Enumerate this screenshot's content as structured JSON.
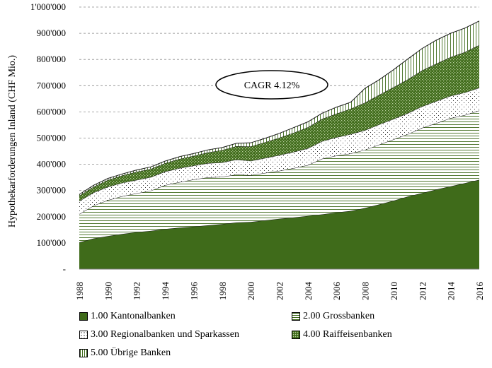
{
  "chart_data": {
    "type": "area",
    "stacked": true,
    "title": "",
    "xlabel": "",
    "ylabel": "Hypothekarforderungen Inland (CHF Mio.)",
    "ylim": [
      0,
      1000000
    ],
    "yticks": [
      0,
      100000,
      200000,
      300000,
      400000,
      500000,
      600000,
      700000,
      800000,
      900000,
      1000000
    ],
    "ytick_labels": [
      "-",
      "100'000",
      "200'000",
      "300'000",
      "400'000",
      "500'000",
      "600'000",
      "700'000",
      "800'000",
      "900'000",
      "1'000'000"
    ],
    "x": [
      1988,
      1989,
      1990,
      1991,
      1992,
      1993,
      1994,
      1995,
      1996,
      1997,
      1998,
      1999,
      2000,
      2001,
      2002,
      2003,
      2004,
      2005,
      2006,
      2007,
      2008,
      2009,
      2010,
      2011,
      2012,
      2013,
      2014,
      2015,
      2016
    ],
    "xticks": [
      "1988",
      "1990",
      "1992",
      "1994",
      "1996",
      "1998",
      "2000",
      "2002",
      "2004",
      "2006",
      "2008",
      "2010",
      "2012",
      "2014",
      "2016"
    ],
    "grid": "horizontal-dashed",
    "annotation": "CAGR 4.12%",
    "legend_position": "bottom",
    "series": [
      {
        "name": "1.00 Kantonalbanken",
        "color": "#3f6b1a",
        "pattern": "solid",
        "values": [
          102000,
          117000,
          126000,
          134000,
          141000,
          146000,
          153000,
          158000,
          162000,
          167000,
          172000,
          178000,
          180000,
          186000,
          192000,
          197000,
          203000,
          209000,
          216000,
          222000,
          233000,
          247000,
          261000,
          277000,
          290000,
          304000,
          316000,
          328000,
          341000
        ]
      },
      {
        "name": "2.00 Grossbanken",
        "color": "#3f6b1a",
        "pattern": "horizontal-lines",
        "values": [
          108000,
          125000,
          137000,
          144000,
          148000,
          153000,
          167000,
          174000,
          180000,
          183000,
          180000,
          183000,
          178000,
          181000,
          183000,
          188000,
          194000,
          212000,
          217000,
          219000,
          222000,
          228000,
          234000,
          238000,
          249000,
          253000,
          260000,
          260000,
          264000
        ]
      },
      {
        "name": "3.00 Regionalbanken und Sparkassen",
        "color": "#3f6b1a",
        "pattern": "dots",
        "values": [
          50000,
          50000,
          51000,
          51000,
          51000,
          52000,
          52000,
          53000,
          53000,
          54000,
          55000,
          57000,
          55000,
          57000,
          60000,
          62000,
          64000,
          67000,
          70000,
          74000,
          75000,
          77000,
          78000,
          80000,
          82000,
          84000,
          85000,
          86000,
          87000
        ]
      },
      {
        "name": "4.00 Raiffeisenbanken",
        "color": "#3f6b1a",
        "pattern": "checker",
        "values": [
          20000,
          22000,
          26000,
          28000,
          31000,
          31000,
          32000,
          35000,
          37000,
          41000,
          47000,
          51000,
          55000,
          60000,
          66000,
          73000,
          80000,
          85000,
          90000,
          97000,
          105000,
          113000,
          121000,
          129000,
          137000,
          143000,
          148000,
          154000,
          163000
        ]
      },
      {
        "name": "5.00 Übrige Banken",
        "color": "#3f6b1a",
        "pattern": "vertical-lines",
        "values": [
          5000,
          6000,
          6000,
          6000,
          7000,
          8000,
          8000,
          9000,
          9000,
          10000,
          10000,
          11000,
          14000,
          15000,
          17000,
          20000,
          21000,
          22000,
          25000,
          25000,
          55000,
          58000,
          67000,
          78000,
          84000,
          90000,
          91000,
          92000,
          92000
        ]
      }
    ]
  }
}
